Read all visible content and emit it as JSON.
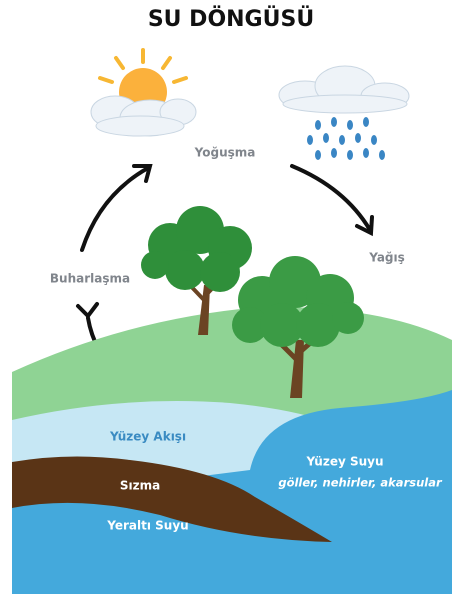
{
  "title": "SU DÖNGÜSÜ",
  "nodes": [
    {
      "label": "Yoğuşma"
    },
    {
      "label": "Yağış"
    },
    {
      "label": "Buharlaşma"
    },
    {
      "label": "Yüzey Akışı"
    },
    {
      "label": "Yüzey Suyu",
      "sublabel": "göller, nehirler, akarsular"
    },
    {
      "label": "Sızma"
    },
    {
      "label": "Yeraltı Suyu"
    }
  ]
}
